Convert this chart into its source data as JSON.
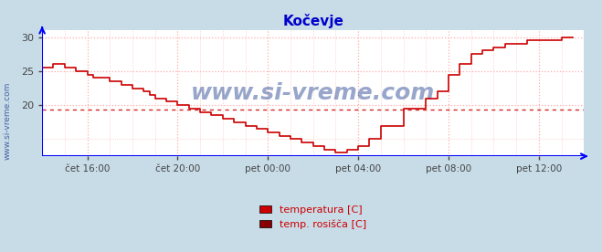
{
  "title": "Kočevje",
  "title_color": "#0000cc",
  "fig_bg_color": "#c8dce8",
  "plot_bg_color": "#ffffff",
  "grid_color": "#ffaaaa",
  "watermark": "www.si-vreme.com",
  "watermark_color": "#1a3a8a",
  "sidebar_text": "www.si-vreme.com",
  "xlim": [
    0,
    24.0
  ],
  "ylim": [
    12.5,
    31.0
  ],
  "yticks": [
    20,
    25,
    30
  ],
  "xtick_positions": [
    2,
    6,
    10,
    14,
    18,
    22
  ],
  "xtick_labels": [
    "čet 16:00",
    "čet 20:00",
    "pet 00:00",
    "pet 04:00",
    "pet 08:00",
    "pet 12:00"
  ],
  "temp_color": "#cc0000",
  "dew_color": "#cc0000",
  "dew_value": 19.3,
  "legend_labels": [
    "temperatura [C]",
    "temp. rosišča [C]"
  ],
  "legend_colors": [
    "#cc0000",
    "#880000"
  ],
  "temp_x": [
    0.0,
    0.5,
    1.0,
    1.5,
    2.0,
    2.25,
    2.5,
    3.0,
    3.5,
    4.0,
    4.5,
    4.75,
    5.0,
    5.5,
    6.0,
    6.5,
    7.0,
    7.5,
    8.0,
    8.5,
    9.0,
    9.5,
    10.0,
    10.5,
    11.0,
    11.5,
    12.0,
    12.5,
    13.0,
    13.25,
    13.5,
    14.0,
    14.5,
    15.0,
    16.0,
    17.0,
    17.5,
    18.0,
    18.5,
    19.0,
    19.5,
    20.0,
    20.5,
    21.0,
    21.5,
    22.0,
    22.5,
    23.0,
    23.5
  ],
  "temp_y": [
    25.5,
    26.0,
    25.5,
    25.0,
    24.5,
    24.0,
    24.0,
    23.5,
    23.0,
    22.5,
    22.0,
    21.5,
    21.0,
    20.5,
    20.0,
    19.5,
    19.0,
    18.5,
    18.0,
    17.5,
    17.0,
    16.5,
    16.0,
    15.5,
    15.0,
    14.5,
    14.0,
    13.5,
    13.0,
    13.0,
    13.5,
    14.0,
    15.0,
    17.0,
    19.5,
    21.0,
    22.0,
    24.5,
    26.0,
    27.5,
    28.0,
    28.5,
    29.0,
    29.0,
    29.5,
    29.5,
    29.5,
    30.0,
    30.0
  ]
}
